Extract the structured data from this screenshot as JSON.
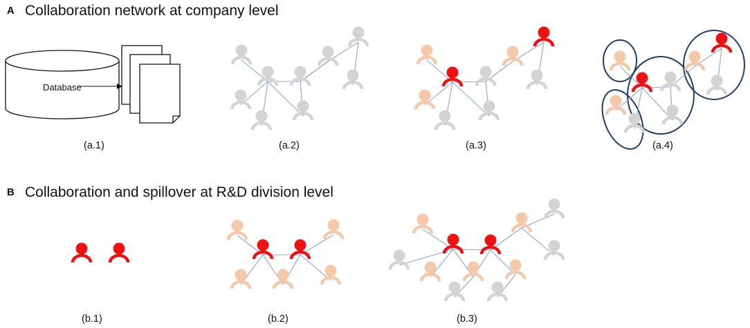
{
  "section_a": {
    "letter": "A",
    "title": "Collaboration network at company level"
  },
  "section_b": {
    "letter": "B",
    "title": "Collaboration and spillover at R&D division level"
  },
  "database_label": "Database",
  "captions": {
    "a1": "(a.1)",
    "a2": "(a.2)",
    "a3": "(a.3)",
    "a4": "(a.4)",
    "b1": "(b.1)",
    "b2": "(b.2)",
    "b3": "(b.3)"
  },
  "colors": {
    "focal": "#ee1111",
    "neighbor": "#f5c8a8",
    "other": "#d3d3d3",
    "edge": "#8ea4cf",
    "cluster": "#1f3c66",
    "text": "#111111"
  }
}
